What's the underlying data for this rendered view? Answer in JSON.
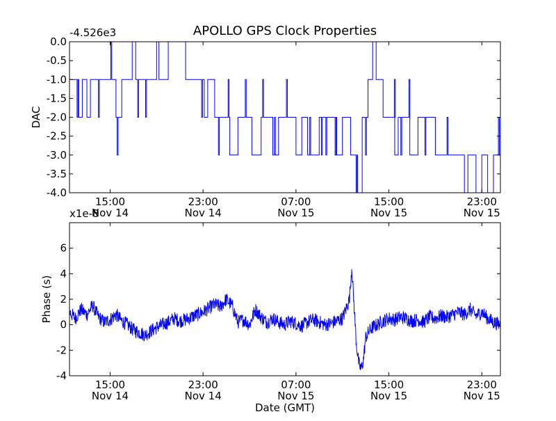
{
  "chart_data": [
    {
      "type": "line",
      "title": "APOLLO GPS Clock Properties",
      "xlabel": "",
      "ylabel": "DAC",
      "offset_text": "-4.526e3",
      "ylim": [
        -4.0,
        0.0
      ],
      "yticks": [
        0.0,
        -0.5,
        -1.0,
        -1.5,
        -2.0,
        -2.5,
        -3.0,
        -3.5,
        -4.0
      ],
      "ytick_labels": [
        "0.0",
        "-0.5",
        "-1.0",
        "-1.5",
        "-2.0",
        "-2.5",
        "-3.0",
        "-3.5",
        "-4.0"
      ],
      "xlim_hours": [
        11.5,
        48.6
      ],
      "xticks_hours": [
        15,
        23,
        31,
        39,
        47
      ],
      "xtick_labels": [
        [
          "15:00",
          "Nov 14"
        ],
        [
          "23:00",
          "Nov 14"
        ],
        [
          "07:00",
          "Nov 15"
        ],
        [
          "15:00",
          "Nov 15"
        ],
        [
          "23:00",
          "Nov 15"
        ]
      ],
      "line_color": "#0000ff",
      "grid": false,
      "series": [
        {
          "x": [
            11.5,
            12.3,
            12.6,
            13.0,
            13.3,
            15.5,
            16.0,
            16.5,
            16.9,
            17.2,
            19.0,
            19.2,
            20.0,
            21.5,
            21.8,
            22.7,
            23.1,
            23.4,
            24.0,
            24.6,
            25.3,
            26.0,
            26.5,
            27.2,
            28.0,
            28.5,
            29.0,
            29.5,
            31.0,
            31.5,
            32.0,
            33.0,
            34.5,
            35.0,
            35.7,
            36.3,
            36.7,
            37.2,
            37.6,
            37.9,
            38.5,
            39.0,
            39.5,
            39.8,
            40.3,
            40.8,
            41.5,
            42.0,
            43.0,
            44.0,
            45.0,
            45.5,
            45.8,
            46.5,
            47.0,
            47.5,
            48.0,
            48.2,
            48.6
          ],
          "y": [
            -1.0,
            -2.0,
            -1.0,
            -2.0,
            -1.0,
            -2.0,
            -1.0,
            -1.0,
            0.0,
            -1.0,
            0.0,
            -1.0,
            0.0,
            -1.0,
            -1.0,
            -1.0,
            -2.0,
            -1.0,
            -2.0,
            -2.0,
            -3.0,
            -2.0,
            -2.0,
            -3.0,
            -2.0,
            -2.0,
            -3.0,
            -2.0,
            -3.0,
            -2.0,
            -3.0,
            -2.0,
            -3.0,
            -2.0,
            -3.0,
            -4.0,
            -2.0,
            -1.0,
            0.0,
            -1.0,
            -2.0,
            -2.0,
            -3.0,
            -2.0,
            -2.0,
            -3.0,
            -2.0,
            -2.0,
            -3.0,
            -3.0,
            -3.0,
            -4.0,
            -3.0,
            -4.0,
            -3.0,
            -4.0,
            -3.0,
            -3.0,
            -3.0
          ]
        }
      ]
    },
    {
      "type": "line",
      "title": "",
      "xlabel": "Date (GMT)",
      "ylabel": "Phase (s)",
      "offset_text": "x1e-8",
      "ylim": [
        -4,
        8
      ],
      "yticks": [
        -4,
        -2,
        0,
        2,
        4,
        6
      ],
      "ytick_labels": [
        "-4",
        "-2",
        "0",
        "2",
        "4",
        "6"
      ],
      "xlim_hours": [
        11.5,
        48.6
      ],
      "xticks_hours": [
        15,
        23,
        31,
        39,
        47
      ],
      "xtick_labels": [
        [
          "15:00",
          "Nov 14"
        ],
        [
          "23:00",
          "Nov 14"
        ],
        [
          "07:00",
          "Nov 15"
        ],
        [
          "15:00",
          "Nov 15"
        ],
        [
          "23:00",
          "Nov 15"
        ]
      ],
      "line_color": "#0000ff",
      "grid": false,
      "series": [
        {
          "x": [
            11.5,
            12.0,
            12.5,
            13.0,
            13.5,
            14.0,
            14.5,
            15.0,
            15.5,
            16.0,
            16.5,
            17.0,
            17.5,
            18.0,
            18.5,
            19.0,
            19.5,
            20.0,
            20.5,
            21.0,
            21.5,
            22.0,
            22.5,
            23.0,
            23.5,
            24.0,
            24.5,
            25.0,
            25.5,
            26.0,
            26.5,
            27.0,
            27.5,
            28.0,
            28.5,
            29.0,
            29.5,
            30.0,
            30.5,
            31.0,
            31.5,
            32.0,
            32.5,
            33.0,
            33.5,
            34.0,
            34.5,
            35.0,
            35.3,
            35.6,
            35.8,
            36.0,
            36.2,
            36.4,
            36.6,
            36.8,
            37.0,
            37.3,
            37.6,
            38.0,
            38.5,
            39.0,
            39.5,
            40.0,
            40.5,
            41.0,
            41.5,
            42.0,
            42.5,
            43.0,
            43.5,
            44.0,
            44.5,
            45.0,
            45.5,
            46.0,
            46.5,
            47.0,
            47.5,
            48.0,
            48.6
          ],
          "y": [
            1.0,
            0.5,
            1.2,
            0.8,
            1.5,
            0.6,
            0.2,
            0.4,
            0.8,
            0.3,
            0.0,
            -0.4,
            -0.6,
            -0.8,
            -0.5,
            -0.2,
            0.0,
            0.2,
            0.5,
            0.3,
            0.4,
            0.6,
            0.8,
            1.0,
            1.3,
            1.6,
            1.4,
            2.0,
            1.5,
            0.2,
            0.4,
            0.0,
            1.2,
            0.6,
            0.2,
            0.5,
            0.2,
            0.0,
            0.3,
            0.1,
            -0.1,
            0.2,
            0.4,
            0.2,
            0.0,
            0.1,
            0.3,
            0.5,
            1.2,
            2.0,
            4.5,
            1.5,
            -1.5,
            -3.0,
            -3.5,
            -2.8,
            -1.0,
            -0.5,
            -0.2,
            0.0,
            0.3,
            0.5,
            0.4,
            0.6,
            0.5,
            0.3,
            0.4,
            0.2,
            0.6,
            0.5,
            0.7,
            0.6,
            0.8,
            1.0,
            0.8,
            1.2,
            0.7,
            1.0,
            0.5,
            0.2,
            0.0
          ]
        }
      ]
    }
  ]
}
